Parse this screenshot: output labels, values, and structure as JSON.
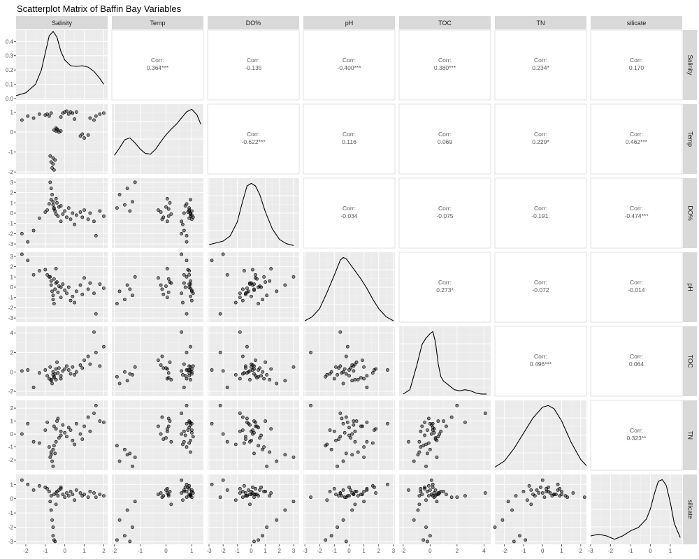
{
  "chart_data": {
    "type": "scatterplot-matrix",
    "title": "Scatterplot Matrix of Baffin Bay Variables",
    "variables": [
      "Salinity",
      "Temp",
      "DO%",
      "pH",
      "TOC",
      "TN",
      "silicate"
    ],
    "corr_label": "Corr:",
    "correlations": [
      {
        "row": 0,
        "col": 1,
        "value": "0.364***"
      },
      {
        "row": 0,
        "col": 2,
        "value": "-0.135"
      },
      {
        "row": 0,
        "col": 3,
        "value": "-0.400***"
      },
      {
        "row": 0,
        "col": 4,
        "value": "0.380***"
      },
      {
        "row": 0,
        "col": 5,
        "value": "0.234*"
      },
      {
        "row": 0,
        "col": 6,
        "value": "0.170"
      },
      {
        "row": 1,
        "col": 2,
        "value": "-0.622***"
      },
      {
        "row": 1,
        "col": 3,
        "value": "0.116"
      },
      {
        "row": 1,
        "col": 4,
        "value": "0.069"
      },
      {
        "row": 1,
        "col": 5,
        "value": "0.229*"
      },
      {
        "row": 1,
        "col": 6,
        "value": "0.462***"
      },
      {
        "row": 2,
        "col": 3,
        "value": "-0.034"
      },
      {
        "row": 2,
        "col": 4,
        "value": "-0.075"
      },
      {
        "row": 2,
        "col": 5,
        "value": "-0.191."
      },
      {
        "row": 2,
        "col": 6,
        "value": "-0.474***"
      },
      {
        "row": 3,
        "col": 4,
        "value": "0.273*"
      },
      {
        "row": 3,
        "col": 5,
        "value": "-0.072"
      },
      {
        "row": 3,
        "col": 6,
        "value": "-0.014"
      },
      {
        "row": 4,
        "col": 5,
        "value": "0.496***"
      },
      {
        "row": 4,
        "col": 6,
        "value": "0.064"
      },
      {
        "row": 5,
        "col": 6,
        "value": "0.323**"
      }
    ],
    "x_ticks": [
      {
        "col": 0,
        "ticks": [
          "-2",
          "-1",
          "0",
          "1",
          "2"
        ],
        "values": [
          -2,
          -1,
          0,
          1,
          2
        ],
        "xlim": [
          -2.5,
          2.2
        ]
      },
      {
        "col": 1,
        "ticks": [
          "-2",
          "-1",
          "0",
          "1"
        ],
        "values": [
          -2,
          -1,
          0,
          1
        ],
        "xlim": [
          -2.1,
          1.45
        ]
      },
      {
        "col": 2,
        "ticks": [
          "-3",
          "-2",
          "-1",
          "0",
          "1",
          "2",
          "3"
        ],
        "values": [
          -3,
          -2,
          -1,
          0,
          1,
          2,
          3
        ],
        "xlim": [
          -3.1,
          3.4
        ]
      },
      {
        "col": 3,
        "ticks": [
          "-3",
          "-2",
          "-1",
          "0",
          "1",
          "2",
          "3"
        ],
        "values": [
          -3,
          -2,
          -1,
          0,
          1,
          2,
          3
        ],
        "xlim": [
          -3.1,
          3.1
        ]
      },
      {
        "col": 4,
        "ticks": [
          "-2",
          "0",
          "2",
          "4"
        ],
        "values": [
          -2,
          0,
          2,
          4
        ],
        "xlim": [
          -2.3,
          4.5
        ]
      },
      {
        "col": 5,
        "ticks": [
          "-2",
          "-1",
          "0",
          "1",
          "2"
        ],
        "values": [
          -2,
          -1,
          0,
          1,
          2
        ],
        "xlim": [
          -2.5,
          2.3
        ]
      },
      {
        "col": 6,
        "ticks": [
          "-3",
          "-2",
          "-1",
          "0",
          "1"
        ],
        "values": [
          -3,
          -2,
          -1,
          0,
          1
        ],
        "xlim": [
          -3.0,
          1.6
        ]
      }
    ],
    "y_ticks": [
      {
        "row": 0,
        "ticks": [
          "0.0",
          "0.1",
          "0.2",
          "0.3",
          "0.4"
        ],
        "values": [
          0,
          0.1,
          0.2,
          0.3,
          0.4
        ],
        "ylim": [
          -0.01,
          0.48
        ]
      },
      {
        "row": 1,
        "ticks": [
          "-2",
          "-1",
          "0",
          "1"
        ],
        "values": [
          -2,
          -1,
          0,
          1
        ],
        "ylim": [
          -2.1,
          1.4
        ]
      },
      {
        "row": 2,
        "ticks": [
          "-3",
          "-2",
          "-1",
          "0",
          "1",
          "2",
          "3"
        ],
        "values": [
          -3,
          -2,
          -1,
          0,
          1,
          2,
          3
        ],
        "ylim": [
          -3.4,
          3.4
        ]
      },
      {
        "row": 3,
        "ticks": [
          "-3",
          "-2",
          "-1",
          "0",
          "1",
          "2",
          "3"
        ],
        "values": [
          -3,
          -2,
          -1,
          0,
          1,
          2,
          3
        ],
        "ylim": [
          -3.4,
          3.4
        ]
      },
      {
        "row": 4,
        "ticks": [
          "-2",
          "0",
          "2",
          "4"
        ],
        "values": [
          -2,
          0,
          2,
          4
        ],
        "ylim": [
          -2.5,
          4.7
        ]
      },
      {
        "row": 5,
        "ticks": [
          "-2",
          "-1",
          "0",
          "1",
          "2"
        ],
        "values": [
          -2,
          -1,
          0,
          1,
          2
        ],
        "ylim": [
          -2.8,
          2.6
        ]
      },
      {
        "row": 6,
        "ticks": [
          "-3",
          "-2",
          "-1",
          "0",
          "1"
        ],
        "values": [
          -3,
          -2,
          -1,
          0,
          1
        ],
        "ylim": [
          -3.2,
          1.7
        ]
      }
    ],
    "density_curves": [
      {
        "col": 0,
        "x": [
          -2.5,
          -2.0,
          -1.5,
          -1.2,
          -1.0,
          -0.8,
          -0.6,
          -0.4,
          -0.2,
          0.0,
          0.3,
          0.6,
          0.9,
          1.2,
          1.5,
          1.8,
          2.0
        ],
        "y": [
          0.02,
          0.04,
          0.1,
          0.2,
          0.32,
          0.44,
          0.47,
          0.43,
          0.33,
          0.27,
          0.23,
          0.225,
          0.23,
          0.22,
          0.19,
          0.14,
          0.1
        ]
      },
      {
        "col": 1,
        "x": [
          -2.0,
          -1.8,
          -1.6,
          -1.4,
          -1.2,
          -1.0,
          -0.8,
          -0.6,
          -0.4,
          -0.2,
          0.0,
          0.2,
          0.4,
          0.6,
          0.8,
          1.0,
          1.2,
          1.35
        ],
        "y": [
          0.3,
          0.42,
          0.55,
          0.58,
          0.5,
          0.4,
          0.33,
          0.32,
          0.4,
          0.52,
          0.63,
          0.72,
          0.8,
          0.9,
          1.0,
          1.04,
          0.95,
          0.8
        ]
      },
      {
        "col": 2,
        "x": [
          -3.0,
          -2.0,
          -1.5,
          -1.0,
          -0.6,
          -0.3,
          0.0,
          0.3,
          0.6,
          1.0,
          1.5,
          2.0,
          2.5,
          3.0
        ],
        "y": [
          0.04,
          0.08,
          0.14,
          0.3,
          0.55,
          0.72,
          0.75,
          0.72,
          0.62,
          0.42,
          0.22,
          0.1,
          0.05,
          0.03
        ]
      },
      {
        "col": 3,
        "x": [
          -3.0,
          -2.5,
          -2.0,
          -1.5,
          -1.0,
          -0.6,
          -0.4,
          -0.2,
          0.0,
          0.4,
          0.8,
          1.2,
          1.6,
          2.0,
          2.5,
          3.0
        ],
        "y": [
          0.01,
          0.04,
          0.1,
          0.22,
          0.35,
          0.46,
          0.48,
          0.47,
          0.44,
          0.38,
          0.32,
          0.25,
          0.17,
          0.1,
          0.04,
          0.01
        ]
      },
      {
        "col": 4,
        "x": [
          -2.0,
          -1.5,
          -1.0,
          -0.6,
          -0.3,
          0.0,
          0.2,
          0.4,
          0.6,
          0.8,
          1.0,
          1.4,
          1.8,
          2.2,
          2.6,
          3.0,
          3.4,
          3.8,
          4.2
        ],
        "y": [
          0.02,
          0.06,
          0.28,
          0.48,
          0.54,
          0.58,
          0.6,
          0.5,
          0.3,
          0.18,
          0.14,
          0.1,
          0.06,
          0.05,
          0.06,
          0.05,
          0.03,
          0.02,
          0.02
        ]
      },
      {
        "col": 5,
        "x": [
          -2.5,
          -2.0,
          -1.5,
          -1.0,
          -0.5,
          0.0,
          0.3,
          0.6,
          1.0,
          1.5,
          2.0,
          2.3
        ],
        "y": [
          0.02,
          0.06,
          0.14,
          0.24,
          0.34,
          0.41,
          0.42,
          0.4,
          0.32,
          0.18,
          0.07,
          0.03
        ]
      },
      {
        "col": 6,
        "x": [
          -3.0,
          -2.6,
          -2.2,
          -1.8,
          -1.4,
          -1.0,
          -0.6,
          -0.2,
          0.0,
          0.2,
          0.4,
          0.6,
          0.8,
          1.0,
          1.2,
          1.5
        ],
        "y": [
          0.1,
          0.12,
          0.1,
          0.06,
          0.1,
          0.16,
          0.2,
          0.3,
          0.42,
          0.6,
          0.75,
          0.77,
          0.7,
          0.5,
          0.25,
          0.08
        ]
      }
    ],
    "points": [
      {
        "Salinity": -2.2,
        "Temp": 0.6,
        "DO%": -2.0,
        "pH": 3.2,
        "TOC": 0.1,
        "TN": 0.0,
        "silicate": 1.3
      },
      {
        "Salinity": -1.9,
        "Temp": 0.8,
        "DO%": -2.8,
        "pH": 2.6,
        "TOC": 0.2,
        "TN": 0.8,
        "silicate": 1.0
      },
      {
        "Salinity": -1.6,
        "Temp": 0.7,
        "DO%": -1.7,
        "pH": 1.2,
        "TOC": -1.6,
        "TN": -0.6,
        "silicate": 0.6
      },
      {
        "Salinity": -1.3,
        "Temp": 0.9,
        "DO%": -0.5,
        "pH": 1.6,
        "TOC": -0.1,
        "TN": -0.7,
        "silicate": 0.9
      },
      {
        "Salinity": -1.0,
        "Temp": 0.85,
        "DO%": 0.1,
        "pH": 1.7,
        "TOC": 0.2,
        "TN": 0.3,
        "silicate": 0.8
      },
      {
        "Salinity": -0.9,
        "Temp": 0.9,
        "DO%": 0.3,
        "pH": 1.2,
        "TOC": -0.4,
        "TN": 0.9,
        "silicate": 0.7
      },
      {
        "Salinity": -0.8,
        "Temp": 0.8,
        "DO%": 0.9,
        "pH": 1.0,
        "TOC": -0.7,
        "TN": -1.0,
        "silicate": 0.5
      },
      {
        "Salinity": -0.7,
        "Temp": 0.95,
        "DO%": 1.3,
        "pH": 0.6,
        "TOC": -0.8,
        "TN": -1.4,
        "silicate": 0.2
      },
      {
        "Salinity": -0.75,
        "Temp": -1.2,
        "DO%": 3.0,
        "pH": 1.0,
        "TOC": 0.5,
        "TN": -1.8,
        "silicate": -0.2
      },
      {
        "Salinity": -0.7,
        "Temp": -1.5,
        "DO%": 2.4,
        "pH": 0.2,
        "TOC": -0.9,
        "TN": -1.6,
        "silicate": -0.8
      },
      {
        "Salinity": -0.65,
        "Temp": -1.8,
        "DO%": 1.8,
        "pH": -0.4,
        "TOC": -1.2,
        "TN": -2.1,
        "silicate": -1.5
      },
      {
        "Salinity": -0.6,
        "Temp": -1.3,
        "DO%": 1.1,
        "pH": -0.8,
        "TOC": -0.3,
        "TN": -2.5,
        "silicate": -2.0
      },
      {
        "Salinity": -0.6,
        "Temp": -1.6,
        "DO%": 0.8,
        "pH": -1.2,
        "TOC": 0.0,
        "TN": -1.2,
        "silicate": -2.6
      },
      {
        "Salinity": -0.55,
        "Temp": -1.9,
        "DO%": 0.5,
        "pH": -1.6,
        "TOC": -0.5,
        "TN": -0.9,
        "silicate": -2.9
      },
      {
        "Salinity": -0.5,
        "Temp": -1.4,
        "DO%": 0.2,
        "pH": -0.2,
        "TOC": -0.2,
        "TN": -1.5,
        "silicate": -3.0
      },
      {
        "Salinity": -0.55,
        "Temp": 0.1,
        "DO%": 0.4,
        "pH": 0.8,
        "TOC": -0.6,
        "TN": 0.6,
        "silicate": 0.3
      },
      {
        "Salinity": -0.45,
        "Temp": 0.05,
        "DO%": 1.4,
        "pH": 1.8,
        "TOC": 0.3,
        "TN": 0.4,
        "silicate": 0.4
      },
      {
        "Salinity": -0.4,
        "Temp": 0.15,
        "DO%": 1.0,
        "pH": 0.5,
        "TOC": 1.0,
        "TN": 1.0,
        "silicate": 0.5
      },
      {
        "Salinity": -0.35,
        "Temp": 0.1,
        "DO%": -0.3,
        "pH": -0.5,
        "TOC": -0.1,
        "TN": 1.2,
        "silicate": 0.2
      },
      {
        "Salinity": -0.3,
        "Temp": 0.0,
        "DO%": 0.6,
        "pH": 0.1,
        "TOC": 0.4,
        "TN": -0.3,
        "silicate": 0.6
      },
      {
        "Salinity": -0.2,
        "Temp": 0.05,
        "DO%": -0.8,
        "pH": -1.0,
        "TOC": -0.7,
        "TN": 0.2,
        "silicate": 0.7
      },
      {
        "Salinity": -0.1,
        "Temp": 0.95,
        "DO%": -0.1,
        "pH": 0.3,
        "TOC": 0.1,
        "TN": 0.7,
        "silicate": 0.3
      },
      {
        "Salinity": 0.0,
        "Temp": 1.0,
        "DO%": 0.2,
        "pH": -0.3,
        "TOC": 0.3,
        "TN": 0.1,
        "silicate": 0.1
      },
      {
        "Salinity": 0.1,
        "Temp": 1.05,
        "DO%": -0.4,
        "pH": -0.6,
        "TOC": 0.6,
        "TN": -0.2,
        "silicate": 0.4
      },
      {
        "Salinity": 0.2,
        "Temp": 0.9,
        "DO%": 0.5,
        "pH": 0.0,
        "TOC": 0.2,
        "TN": 0.5,
        "silicate": 0.2
      },
      {
        "Salinity": 0.3,
        "Temp": 1.0,
        "DO%": -0.6,
        "pH": -1.3,
        "TOC": -0.2,
        "TN": 0.3,
        "silicate": 0.5
      },
      {
        "Salinity": 0.4,
        "Temp": 0.95,
        "DO%": 0.0,
        "pH": -0.9,
        "TOC": 0.5,
        "TN": -0.5,
        "silicate": 0.3
      },
      {
        "Salinity": 0.6,
        "Temp": 1.0,
        "DO%": -0.2,
        "pH": -0.4,
        "TOC": 0.0,
        "TN": 0.8,
        "silicate": 0.6
      },
      {
        "Salinity": 0.8,
        "Temp": -0.2,
        "DO%": 0.1,
        "pH": 0.2,
        "TOC": 0.7,
        "TN": 0.0,
        "silicate": 0.4
      },
      {
        "Salinity": 0.9,
        "Temp": -0.1,
        "DO%": -0.4,
        "pH": -0.7,
        "TOC": 0.4,
        "TN": -0.4,
        "silicate": 0.2
      },
      {
        "Salinity": 1.0,
        "Temp": -0.3,
        "DO%": 0.3,
        "pH": 0.9,
        "TOC": 1.2,
        "TN": 0.6,
        "silicate": 0.3
      },
      {
        "Salinity": 1.2,
        "Temp": -0.15,
        "DO%": -0.6,
        "pH": -0.2,
        "TOC": 1.6,
        "TN": 1.3,
        "silicate": 0.1
      },
      {
        "Salinity": 1.3,
        "Temp": 0.7,
        "DO%": 0.0,
        "pH": 0.4,
        "TOC": 0.8,
        "TN": 0.2,
        "silicate": 0.5
      },
      {
        "Salinity": 1.5,
        "Temp": 0.6,
        "DO%": -0.8,
        "pH": -0.6,
        "TOC": 4.1,
        "TN": 1.6,
        "silicate": 0.4
      },
      {
        "Salinity": 1.6,
        "Temp": 0.8,
        "DO%": -2.2,
        "pH": -2.6,
        "TOC": 2.0,
        "TN": 2.2,
        "silicate": 0.1
      },
      {
        "Salinity": 1.8,
        "Temp": 0.9,
        "DO%": 0.2,
        "pH": 0.3,
        "TOC": 0.6,
        "TN": 1.0,
        "silicate": 0.3
      },
      {
        "Salinity": 2.0,
        "Temp": 0.95,
        "DO%": -0.3,
        "pH": -0.1,
        "TOC": 2.6,
        "TN": 0.9,
        "silicate": 0.2
      },
      {
        "Salinity": -0.2,
        "Temp": 0.75,
        "DO%": 0.7,
        "pH": 0.0,
        "TOC": -0.4,
        "TN": -0.1,
        "silicate": 0.8
      },
      {
        "Salinity": 0.5,
        "Temp": 0.65,
        "DO%": -1.1,
        "pH": -1.5,
        "TOC": -0.3,
        "TN": -0.8,
        "silicate": -0.1
      },
      {
        "Salinity": -0.45,
        "Temp": 0.2,
        "DO%": -0.1,
        "pH": 0.4,
        "TOC": -0.8,
        "TN": -0.6,
        "silicate": -0.4
      }
    ]
  }
}
